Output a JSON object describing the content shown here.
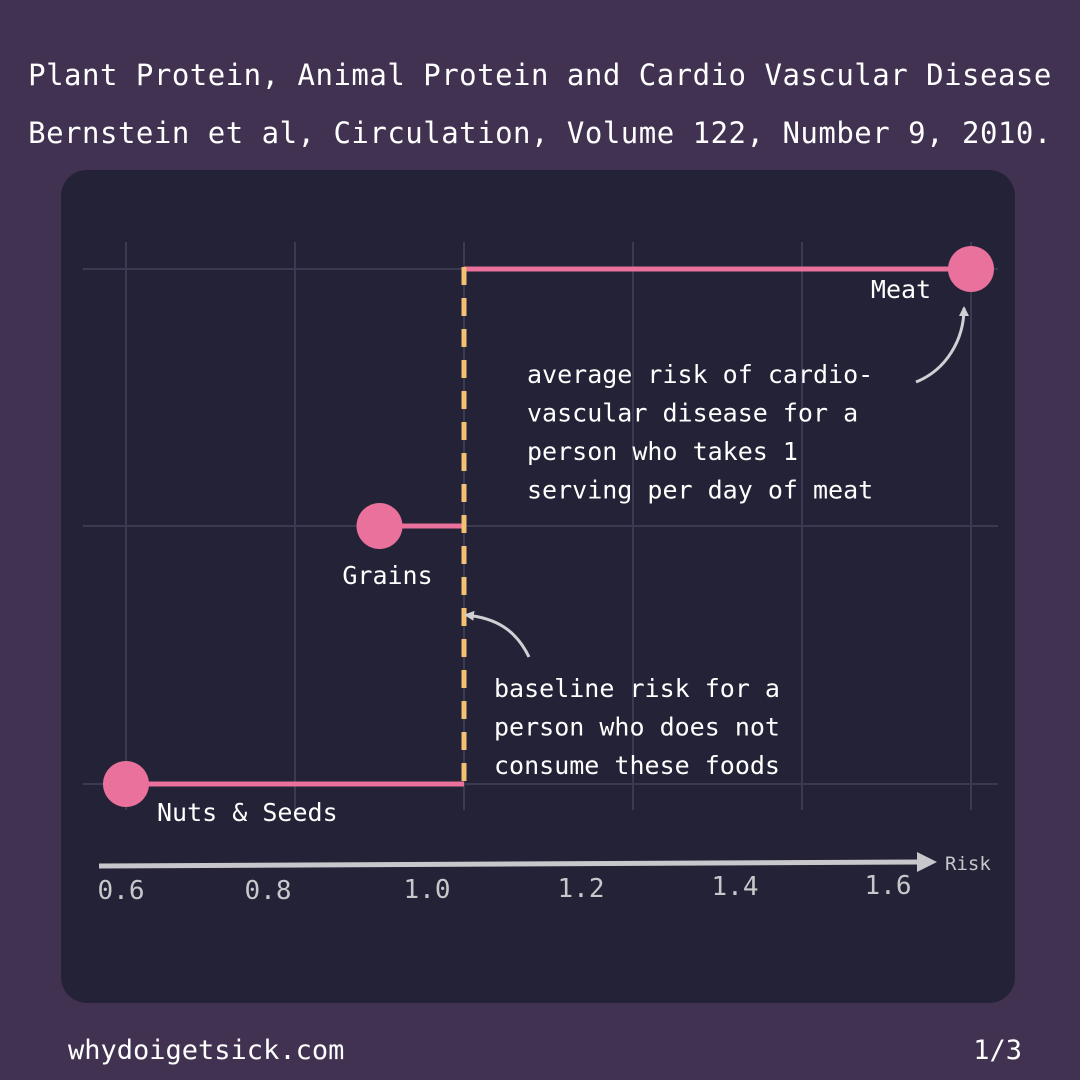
{
  "header": {
    "title": "Plant Protein, Animal Protein and Cardio Vascular Disease",
    "subtitle": "Bernstein et al, Circulation, Volume 122, Number 9, 2010."
  },
  "footer": {
    "site": "whydoigetsick.com",
    "page": "1/3"
  },
  "colors": {
    "background": "#413252",
    "card": "#232236",
    "grid": "#3a3a52",
    "series": "#e9719b",
    "baseline": "#f4c072",
    "axis": "#c8c8cc"
  },
  "chart_data": {
    "type": "scatter",
    "xlabel": "Risk",
    "xlim": [
      0.57,
      1.7
    ],
    "x_ticks": [
      "0.6",
      "0.8",
      "1.0",
      "1.2",
      "1.4",
      "1.6"
    ],
    "baseline": 1.0,
    "grid": true,
    "points": [
      {
        "label": "Nuts & Seeds",
        "x": 0.6,
        "row": 0
      },
      {
        "label": "Grains",
        "x": 0.9,
        "row": 1
      },
      {
        "label": "Meat",
        "x": 1.6,
        "row": 2
      }
    ],
    "annotations": {
      "meat": [
        "average risk of cardio-",
        "vascular disease for a",
        "person who takes 1",
        "serving per day of meat"
      ],
      "baseline": [
        "baseline risk for a",
        "person who does not",
        "consume these foods"
      ]
    }
  }
}
